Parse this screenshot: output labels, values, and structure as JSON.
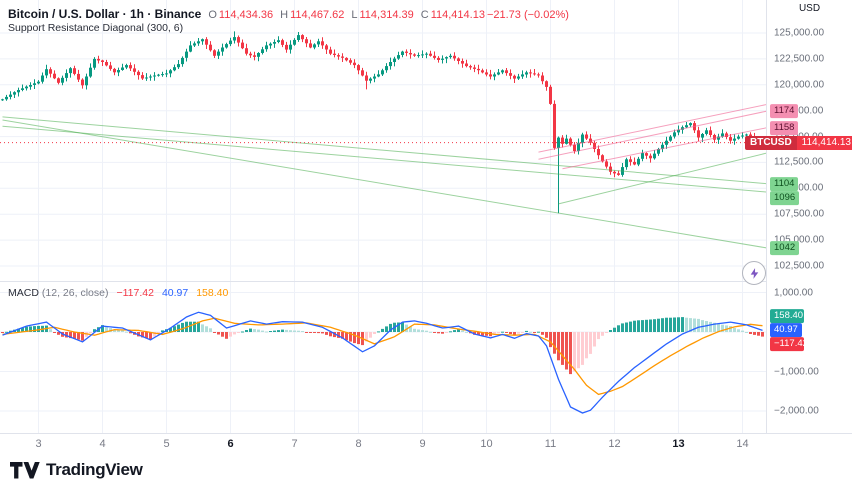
{
  "header": {
    "symbol_title": "Bitcoin / U.S. Dollar · 1h · Binance",
    "ohlc": {
      "o_label": "O",
      "o_value": "114,434.36",
      "h_label": "H",
      "h_value": "114,467.62",
      "l_label": "L",
      "l_value": "114,314.39",
      "c_label": "C",
      "c_value": "114,414.13",
      "change": "−21.73 (−0.02%)"
    },
    "indicator_label": "Support Resistance Diagonal (300, 6)"
  },
  "macd_legend": {
    "name": "MACD",
    "params": "(12, 26, close)",
    "values": [
      {
        "text": "−117.42",
        "color": "#f23645"
      },
      {
        "text": "40.97",
        "color": "#2962ff"
      },
      {
        "text": "158.40",
        "color": "#ff9800"
      }
    ]
  },
  "price_axis": {
    "currency": "USD",
    "labels": [
      {
        "text": "125,000.00",
        "value": 125000
      },
      {
        "text": "122,500.00",
        "value": 122500
      },
      {
        "text": "120,000.00",
        "value": 120000
      },
      {
        "text": "117,500.00",
        "value": 117500
      },
      {
        "text": "115,000.00",
        "value": 115000
      },
      {
        "text": "112,500.00",
        "value": 112500
      },
      {
        "text": "110,000.00",
        "value": 110000
      },
      {
        "text": "107,500.00",
        "value": 107500
      },
      {
        "text": "105,000.00",
        "value": 105000
      },
      {
        "text": "102,500.00",
        "value": 102500
      }
    ],
    "badges": [
      {
        "text": "1174",
        "price": 117450,
        "bg": "#f48fb1",
        "fg": "#5c1030"
      },
      {
        "text": "1158",
        "price": 115850,
        "bg": "#f48fb1",
        "fg": "#5c1030"
      },
      {
        "text": "1104",
        "price": 110450,
        "bg": "#7fd491",
        "fg": "#0d4f1e"
      },
      {
        "text": "1096",
        "price": 109650,
        "bg": "#7fd491",
        "fg": "#0d4f1e"
      },
      {
        "text": "1042",
        "price": 104250,
        "bg": "#7fd491",
        "fg": "#0d4f1e"
      }
    ],
    "price_badge": {
      "symbol": "BTCUSD",
      "value": "114,414.13",
      "bg": "#f23645"
    }
  },
  "macd_axis": {
    "labels": [
      {
        "text": "1,000.00",
        "value": 1000
      },
      {
        "text": "−1,000.00",
        "value": -1000
      },
      {
        "text": "−2,000.00",
        "value": -2000
      }
    ],
    "badges": [
      {
        "text": "158.40",
        "bg": "#22ab94"
      },
      {
        "text": "40.97",
        "bg": "#2962ff"
      },
      {
        "text": "−117.42",
        "bg": "#f23645"
      }
    ]
  },
  "time_axis": {
    "days": [
      {
        "label": "3",
        "day": 3,
        "bold": false
      },
      {
        "label": "4",
        "day": 4,
        "bold": false
      },
      {
        "label": "5",
        "day": 5,
        "bold": false
      },
      {
        "label": "6",
        "day": 6,
        "bold": true
      },
      {
        "label": "7",
        "day": 7,
        "bold": false
      },
      {
        "label": "8",
        "day": 8,
        "bold": false
      },
      {
        "label": "9",
        "day": 9,
        "bold": false
      },
      {
        "label": "10",
        "day": 10,
        "bold": false
      },
      {
        "label": "11",
        "day": 11,
        "bold": false
      },
      {
        "label": "12",
        "day": 12,
        "bold": false
      },
      {
        "label": "13",
        "day": 13,
        "bold": true
      },
      {
        "label": "14",
        "day": 14,
        "bold": false
      }
    ]
  },
  "footer": {
    "brand": "TradingView"
  },
  "colors": {
    "up": "#089981",
    "down": "#f23645",
    "macd_line": "#2962ff",
    "signal_line": "#ff9800",
    "hist_pos": "#26a69a",
    "hist_pos_weak": "#b2dfdb",
    "hist_neg": "#ef5350",
    "hist_neg_weak": "#ffcdd2",
    "grid": "#eef1f8",
    "current_price": "#f23645"
  },
  "chart_data": [
    {
      "id": "price-pane",
      "type": "candlestick",
      "title": "Bitcoin / U.S. Dollar, 1h, Binance (BTCUSD)",
      "current_ohlc": {
        "open": 114434.36,
        "high": 114467.62,
        "low": 114314.39,
        "close": 114414.13,
        "change": -21.73,
        "change_pct": -0.02
      },
      "current_price": 114414.13,
      "y_axis": {
        "ticks": [
          125000,
          122500,
          120000,
          117500,
          115000,
          112500,
          110000,
          107500,
          105000,
          102500
        ],
        "currency": "USD"
      },
      "x_axis": {
        "day_ticks": [
          3,
          4,
          5,
          6,
          7,
          8,
          9,
          10,
          11,
          12,
          13,
          14
        ],
        "index_of_day3": 9,
        "candles_per_day": 16
      },
      "first_open": 118500,
      "closes": [
        118600,
        118830,
        119050,
        119280,
        119500,
        119660,
        119820,
        119980,
        120140,
        120300,
        120900,
        121500,
        121070,
        120630,
        120200,
        120670,
        121130,
        121600,
        121050,
        120500,
        119950,
        120800,
        121650,
        122500,
        122350,
        122200,
        121870,
        121530,
        121200,
        121430,
        121670,
        121900,
        121580,
        121250,
        120930,
        120600,
        120700,
        120800,
        120900,
        120970,
        121030,
        121100,
        121400,
        121700,
        122000,
        122600,
        123200,
        123800,
        124000,
        124200,
        124400,
        123870,
        123330,
        122800,
        123200,
        123600,
        123930,
        124270,
        124600,
        124070,
        123530,
        123000,
        122850,
        122700,
        123070,
        123430,
        123800,
        123970,
        124130,
        124300,
        123850,
        123400,
        123870,
        124330,
        124800,
        124400,
        124000,
        123600,
        123900,
        124200,
        123800,
        123400,
        123000,
        122870,
        122730,
        122600,
        122370,
        122130,
        121900,
        121400,
        120900,
        120400,
        120600,
        120800,
        121000,
        121400,
        121800,
        122200,
        122530,
        122870,
        123200,
        123070,
        122930,
        122800,
        122870,
        122930,
        123000,
        122800,
        122600,
        122400,
        122530,
        122670,
        122800,
        122550,
        122300,
        122050,
        121800,
        121670,
        121530,
        121400,
        121200,
        121000,
        120800,
        121000,
        121200,
        121400,
        121130,
        120870,
        120600,
        120800,
        121000,
        121200,
        121100,
        121000,
        120900,
        120350,
        119800,
        118150,
        113900,
        114900,
        114300,
        114800,
        114200,
        113600,
        114400,
        115200,
        114800,
        114400,
        113800,
        113200,
        112600,
        112100,
        111600,
        111450,
        111300,
        112050,
        112800,
        112550,
        112300,
        112850,
        113400,
        113150,
        112900,
        113350,
        113800,
        114200,
        114600,
        115000,
        115400,
        115650,
        115900,
        116100,
        116300,
        115600,
        114900,
        115250,
        115600,
        115150,
        114700,
        115000,
        115300,
        114950,
        114600,
        114800,
        115000,
        115100,
        115200,
        115000,
        114800,
        114600,
        114414
      ],
      "special_wicks": {
        "58": {
          "high": 125150
        },
        "74": {
          "high": 125100
        },
        "91": {
          "low": 119550
        },
        "139": {
          "low": 107600
        }
      },
      "diagonals": [
        {
          "i1": 0,
          "p1": 116600,
          "i2": 191,
          "p2": 104250,
          "color": "#4caf50",
          "opacity": 0.55
        },
        {
          "i1": 0,
          "p1": 116900,
          "i2": 191,
          "p2": 110450,
          "color": "#4caf50",
          "opacity": 0.55
        },
        {
          "i1": 0,
          "p1": 116000,
          "i2": 191,
          "p2": 109650,
          "color": "#4caf50",
          "opacity": 0.55
        },
        {
          "i1": 139,
          "p1": 108500,
          "i2": 191,
          "p2": 113400,
          "color": "#4caf50",
          "opacity": 0.55
        },
        {
          "i1": 134,
          "p1": 112800,
          "i2": 191,
          "p2": 117450,
          "color": "#f06292",
          "opacity": 0.6
        },
        {
          "i1": 134,
          "p1": 113500,
          "i2": 191,
          "p2": 118100,
          "color": "#f06292",
          "opacity": 0.6
        },
        {
          "i1": 140,
          "p1": 111900,
          "i2": 191,
          "p2": 115850,
          "color": "#f06292",
          "opacity": 0.6
        }
      ]
    },
    {
      "id": "macd-pane",
      "type": "line+histogram",
      "indicator": "MACD(12, 26, close)",
      "current": {
        "histogram": -117.42,
        "macd": 40.97,
        "signal": 158.4
      },
      "y_axis": {
        "ticks": [
          1000,
          -1000,
          -2000
        ]
      },
      "macd_keypoints": [
        [
          0,
          -80
        ],
        [
          6,
          150
        ],
        [
          11,
          250
        ],
        [
          15,
          -50
        ],
        [
          20,
          -250
        ],
        [
          25,
          150
        ],
        [
          30,
          100
        ],
        [
          37,
          -200
        ],
        [
          42,
          100
        ],
        [
          46,
          380
        ],
        [
          49,
          500
        ],
        [
          52,
          420
        ],
        [
          56,
          100
        ],
        [
          62,
          280
        ],
        [
          66,
          200
        ],
        [
          70,
          260
        ],
        [
          75,
          250
        ],
        [
          80,
          120
        ],
        [
          85,
          -150
        ],
        [
          90,
          -500
        ],
        [
          93,
          -350
        ],
        [
          97,
          50
        ],
        [
          100,
          250
        ],
        [
          103,
          280
        ],
        [
          106,
          220
        ],
        [
          110,
          100
        ],
        [
          114,
          150
        ],
        [
          118,
          -50
        ],
        [
          122,
          -150
        ],
        [
          125,
          -60
        ],
        [
          128,
          -160
        ],
        [
          131,
          -40
        ],
        [
          134,
          -100
        ],
        [
          136,
          -350
        ],
        [
          139,
          -1200
        ],
        [
          142,
          -1900
        ],
        [
          145,
          -2050
        ],
        [
          147,
          -1980
        ],
        [
          150,
          -1650
        ],
        [
          152,
          -1450
        ],
        [
          154,
          -1250
        ],
        [
          158,
          -900
        ],
        [
          162,
          -600
        ],
        [
          166,
          -300
        ],
        [
          170,
          -50
        ],
        [
          174,
          120
        ],
        [
          178,
          200
        ],
        [
          182,
          250
        ],
        [
          186,
          180
        ],
        [
          190,
          40.97
        ]
      ],
      "signal_keypoints": [
        [
          0,
          -60
        ],
        [
          8,
          40
        ],
        [
          13,
          120
        ],
        [
          18,
          0
        ],
        [
          23,
          -80
        ],
        [
          28,
          60
        ],
        [
          34,
          40
        ],
        [
          40,
          -60
        ],
        [
          45,
          80
        ],
        [
          50,
          280
        ],
        [
          53,
          350
        ],
        [
          58,
          220
        ],
        [
          64,
          180
        ],
        [
          70,
          200
        ],
        [
          76,
          230
        ],
        [
          82,
          120
        ],
        [
          88,
          -80
        ],
        [
          93,
          -300
        ],
        [
          98,
          -120
        ],
        [
          103,
          200
        ],
        [
          108,
          180
        ],
        [
          113,
          90
        ],
        [
          118,
          20
        ],
        [
          123,
          -60
        ],
        [
          128,
          -80
        ],
        [
          133,
          -60
        ],
        [
          137,
          -250
        ],
        [
          140,
          -600
        ],
        [
          143,
          -950
        ],
        [
          146,
          -1350
        ],
        [
          149,
          -1580
        ],
        [
          152,
          -1500
        ],
        [
          155,
          -1380
        ],
        [
          159,
          -1120
        ],
        [
          163,
          -850
        ],
        [
          167,
          -600
        ],
        [
          171,
          -370
        ],
        [
          175,
          -160
        ],
        [
          179,
          10
        ],
        [
          183,
          130
        ],
        [
          187,
          195
        ],
        [
          190,
          158.4
        ]
      ]
    }
  ]
}
